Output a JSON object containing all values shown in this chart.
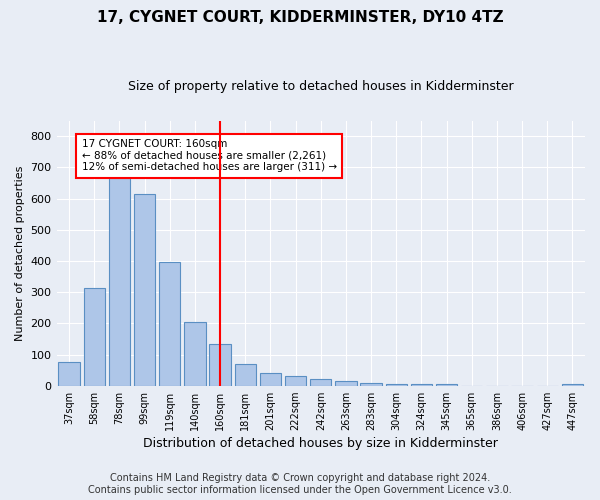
{
  "title": "17, CYGNET COURT, KIDDERMINSTER, DY10 4TZ",
  "subtitle": "Size of property relative to detached houses in Kidderminster",
  "xlabel": "Distribution of detached houses by size in Kidderminster",
  "ylabel": "Number of detached properties",
  "categories": [
    "37sqm",
    "58sqm",
    "78sqm",
    "99sqm",
    "119sqm",
    "140sqm",
    "160sqm",
    "181sqm",
    "201sqm",
    "222sqm",
    "242sqm",
    "263sqm",
    "283sqm",
    "304sqm",
    "324sqm",
    "345sqm",
    "365sqm",
    "386sqm",
    "406sqm",
    "427sqm",
    "447sqm"
  ],
  "values": [
    75,
    312,
    665,
    615,
    398,
    205,
    133,
    68,
    40,
    32,
    20,
    15,
    10,
    5,
    5,
    5,
    0,
    0,
    0,
    0,
    7
  ],
  "bar_color": "#aec6e8",
  "bar_edge_color": "#5a8fc3",
  "highlight_index": 6,
  "highlight_color": "red",
  "annotation_line1": "17 CYGNET COURT: 160sqm",
  "annotation_line2": "← 88% of detached houses are smaller (2,261)",
  "annotation_line3": "12% of semi-detached houses are larger (311) →",
  "annotation_box_color": "white",
  "annotation_box_edge_color": "red",
  "ylim": [
    0,
    850
  ],
  "yticks": [
    0,
    100,
    200,
    300,
    400,
    500,
    600,
    700,
    800
  ],
  "footer": "Contains HM Land Registry data © Crown copyright and database right 2024.\nContains public sector information licensed under the Open Government Licence v3.0.",
  "background_color": "#e8edf5",
  "plot_background_color": "#e8edf5",
  "grid_color": "white",
  "title_fontsize": 11,
  "subtitle_fontsize": 9,
  "footer_fontsize": 7
}
